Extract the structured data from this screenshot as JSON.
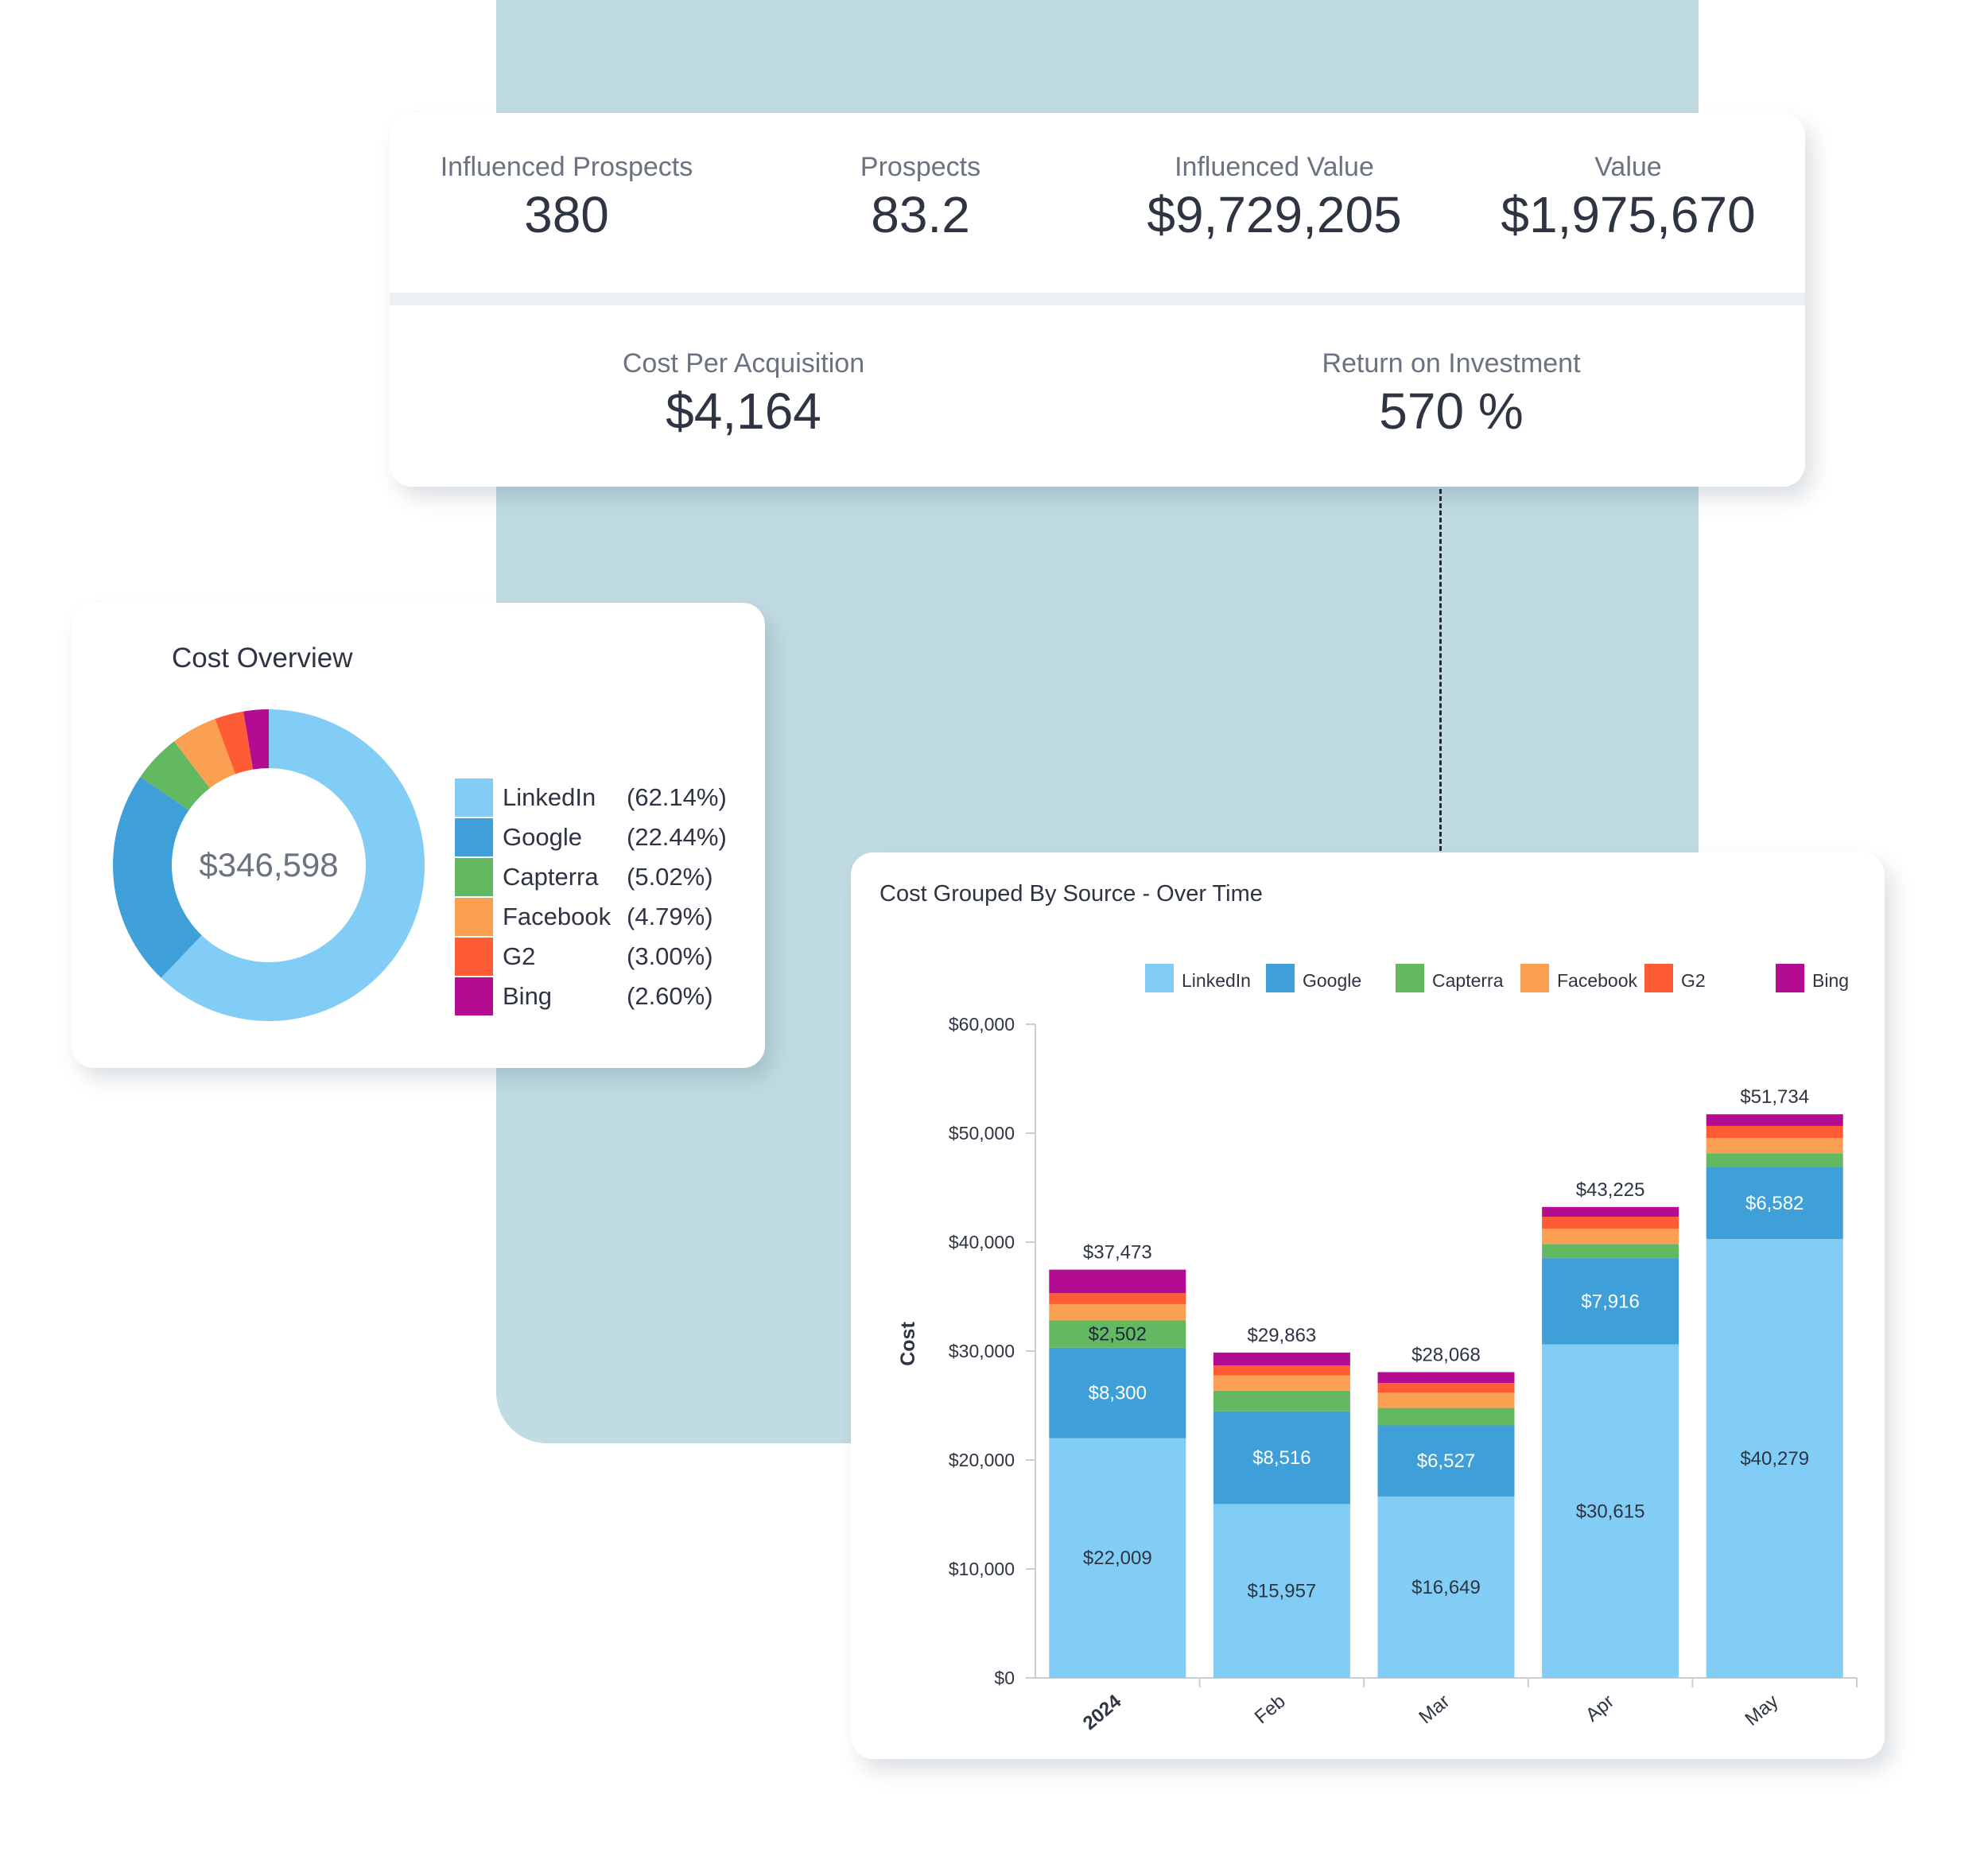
{
  "kpis": {
    "influenced_prospects": {
      "label": "Influenced Prospects",
      "value": "380"
    },
    "prospects": {
      "label": "Prospects",
      "value": "83.2"
    },
    "influenced_value": {
      "label": "Influenced Value",
      "value": "$9,729,205"
    },
    "value": {
      "label": "Value",
      "value": "$1,975,670"
    },
    "cost_per_acquisition": {
      "label": "Cost Per Acquisition",
      "value": "$4,164"
    },
    "roi": {
      "label": "Return on Investment",
      "value": "570 %"
    }
  },
  "cost_overview": {
    "title": "Cost Overview",
    "center_value": "$346,598",
    "legend": [
      {
        "name": "LinkedIn",
        "pct": "(62.14%)"
      },
      {
        "name": "Google",
        "pct": "(22.44%)"
      },
      {
        "name": "Capterra",
        "pct": "(5.02%)"
      },
      {
        "name": "Facebook",
        "pct": "(4.79%)"
      },
      {
        "name": "G2",
        "pct": "(3.00%)"
      },
      {
        "name": "Bing",
        "pct": "(2.60%)"
      }
    ]
  },
  "bar_chart": {
    "title": "Cost Grouped By Source - Over Time"
  },
  "colors": {
    "LinkedIn": "#81cdf6",
    "Google": "#3f9fd8",
    "Capterra": "#63b862",
    "Facebook": "#fba052",
    "G2": "#fd5c34",
    "Bing": "#b40c91"
  },
  "chart_data": [
    {
      "type": "pie",
      "title": "Cost Overview",
      "center_label": "$346,598",
      "labels": [
        "LinkedIn",
        "Google",
        "Capterra",
        "Facebook",
        "G2",
        "Bing"
      ],
      "values": [
        62.14,
        22.44,
        5.02,
        4.79,
        3.0,
        2.6
      ]
    },
    {
      "type": "bar",
      "stacked": true,
      "title": "Cost Grouped By Source - Over Time",
      "xlabel": "",
      "ylabel": "Cost",
      "ylim": [
        0,
        60000
      ],
      "yticks": [
        "$0",
        "$10,000",
        "$20,000",
        "$30,000",
        "$40,000",
        "$50,000",
        "$60,000"
      ],
      "legend_position": "top",
      "grid": false,
      "categories": [
        "2024",
        "Feb",
        "Mar",
        "Apr",
        "May"
      ],
      "totals": [
        37473,
        29863,
        28068,
        43225,
        51734
      ],
      "total_labels": [
        "$37,473",
        "$29,863",
        "$28,068",
        "$43,225",
        "$51,734"
      ],
      "series": [
        {
          "name": "LinkedIn",
          "values": [
            22009,
            15957,
            16649,
            30615,
            40279
          ],
          "labels": [
            "$22,009",
            "$15,957",
            "$16,649",
            "$30,615",
            "$40,279"
          ]
        },
        {
          "name": "Google",
          "values": [
            8300,
            8516,
            6527,
            7916,
            6582
          ],
          "labels": [
            "$8,300",
            "$8,516",
            "$6,527",
            "$7,916",
            "$6,582"
          ]
        },
        {
          "name": "Capterra",
          "values": [
            2502,
            1900,
            1600,
            1300,
            1300
          ],
          "labels": [
            "$2,502",
            "",
            "",
            "",
            ""
          ]
        },
        {
          "name": "Facebook",
          "values": [
            1500,
            1400,
            1400,
            1400,
            1400
          ],
          "labels": [
            "",
            "",
            "",
            "",
            ""
          ]
        },
        {
          "name": "G2",
          "values": [
            1000,
            900,
            900,
            1100,
            1100
          ],
          "labels": [
            "",
            "",
            "",
            "",
            ""
          ]
        },
        {
          "name": "Bing",
          "values": [
            2162,
            1190,
            992,
            894,
            1073
          ],
          "labels": [
            "",
            "",
            "",
            "",
            ""
          ]
        }
      ]
    }
  ]
}
